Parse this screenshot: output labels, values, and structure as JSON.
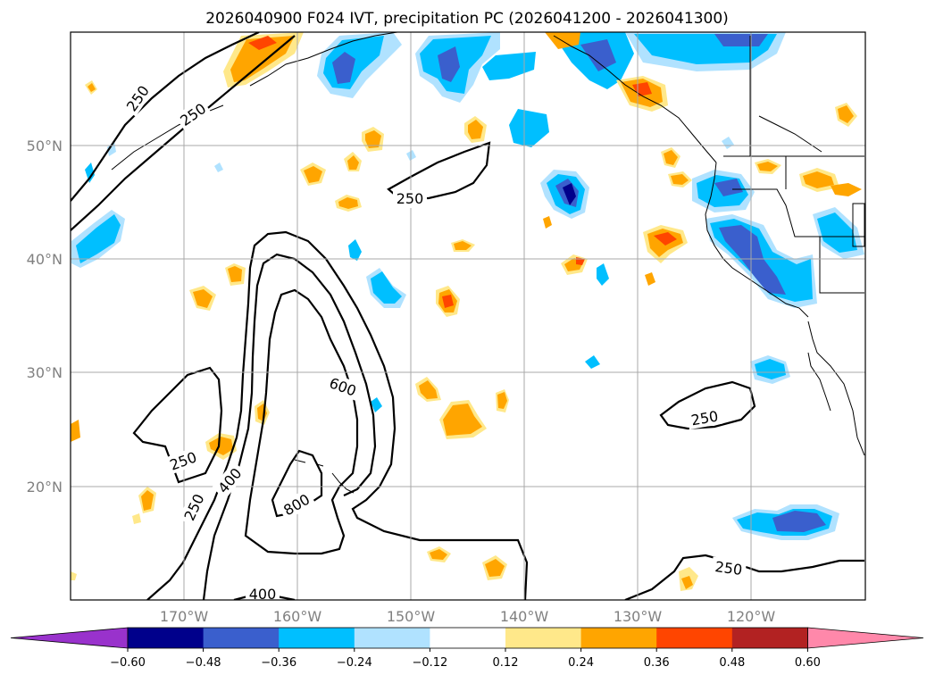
{
  "title": "2026040900 F024 IVT, precipitation PC (2026041200 - 2026041300)",
  "lon_labels": [
    "170°W",
    "160°W",
    "150°W",
    "140°W",
    "130°W",
    "120°W"
  ],
  "lat_labels": [
    "50°N",
    "40°N",
    "30°N",
    "20°N"
  ],
  "colorbar": {
    "ticks": [
      "−0.60",
      "−0.48",
      "−0.36",
      "−0.24",
      "−0.12",
      "0.12",
      "0.24",
      "0.36",
      "0.48",
      "0.60"
    ],
    "colors": [
      "#9932cc",
      "#00008b",
      "#3a5fcd",
      "#00bfff",
      "#b0e2ff",
      "#ffffff",
      "#ffe88a",
      "#ffa500",
      "#ff4500",
      "#b22222",
      "#ff88aa"
    ]
  },
  "contour_labels": [
    {
      "text": "250"
    },
    {
      "text": "250"
    },
    {
      "text": "250"
    },
    {
      "text": "250"
    },
    {
      "text": "250"
    },
    {
      "text": "250"
    },
    {
      "text": "250"
    },
    {
      "text": "400"
    },
    {
      "text": "400"
    },
    {
      "text": "600"
    },
    {
      "text": "800"
    }
  ]
}
